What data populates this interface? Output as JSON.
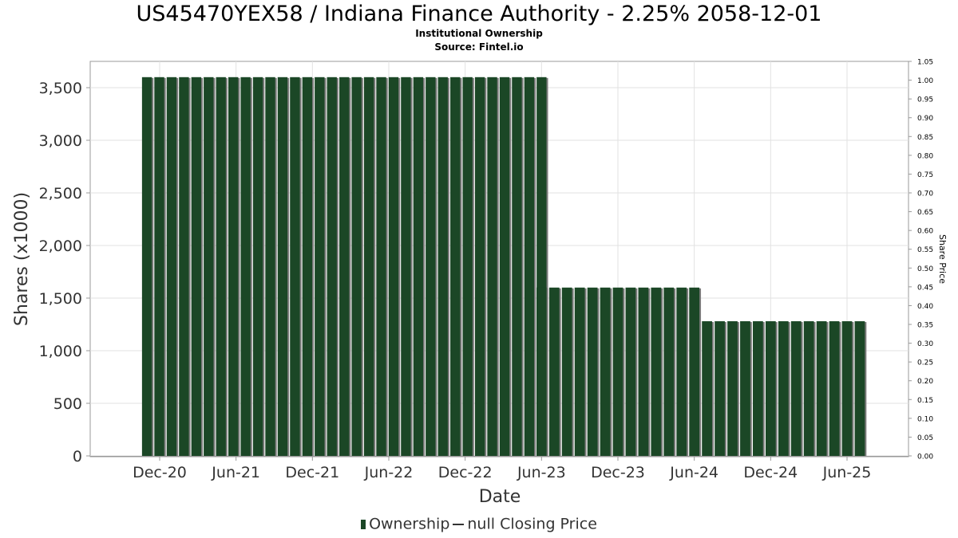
{
  "title": "US45470YEX58 / Indiana Finance Authority - 2.25% 2058-12-01",
  "subtitle": "Institutional Ownership",
  "source": "Source: Fintel.io",
  "legend": {
    "ownership": "Ownership",
    "price": "null Closing Price"
  },
  "chart_data": {
    "type": "bar",
    "xlabel": "Date",
    "ylabel": "Shares (x1000)",
    "y2label": "Share Price",
    "ylim": [
      0,
      3750
    ],
    "y2lim": [
      0,
      1.05
    ],
    "yticks": [
      "0",
      "500",
      "1,000",
      "1,500",
      "2,000",
      "2,500",
      "3,000",
      "3,500"
    ],
    "y2ticks": [
      "0.00",
      "0.05",
      "0.10",
      "0.15",
      "0.20",
      "0.25",
      "0.30",
      "0.35",
      "0.40",
      "0.45",
      "0.50",
      "0.55",
      "0.60",
      "0.65",
      "0.70",
      "0.75",
      "0.80",
      "0.85",
      "0.90",
      "0.95",
      "1.00",
      "1.05"
    ],
    "xticks": [
      "Dec-20",
      "Jun-21",
      "Dec-21",
      "Jun-22",
      "Dec-22",
      "Jun-23",
      "Dec-23",
      "Jun-24",
      "Dec-24",
      "Jun-25"
    ],
    "grid": true,
    "legend_position": "bottom",
    "series": [
      {
        "name": "Ownership",
        "color": "#1b4726",
        "segments": [
          {
            "from": "2020-11",
            "to": "2023-06",
            "bars": 33,
            "value": 3600
          },
          {
            "from": "2023-06",
            "to": "2024-06",
            "bars": 13,
            "value": 1600
          },
          {
            "from": "2024-07",
            "to": "2025-07",
            "bars": 13,
            "value": 1280
          }
        ]
      },
      {
        "name": "null Closing Price",
        "values": []
      }
    ]
  }
}
